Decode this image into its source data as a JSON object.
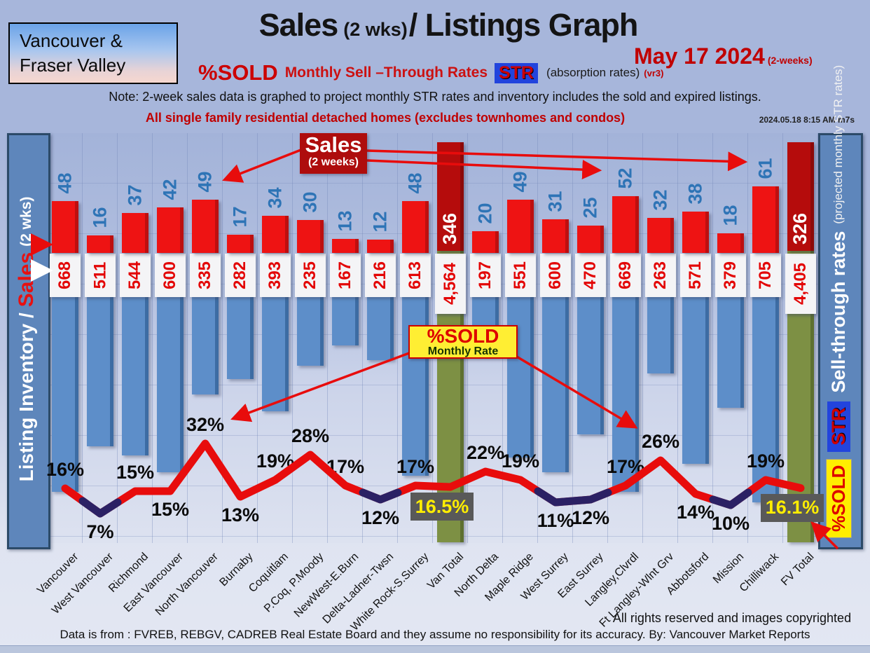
{
  "header": {
    "region_line1": "Vancouver &",
    "region_line2": "Fraser Valley",
    "title_main": "Sales",
    "title_small": "(2 wks)",
    "title_rest": "/ Listings Graph",
    "date": "May 17  2024",
    "date_suffix": "(2-weeks)",
    "pct_sold": "%SOLD",
    "monthly_rates": "Monthly Sell –Through Rates",
    "str_badge": "STR",
    "absorption": "(absorption rates)",
    "version": "(vr3)",
    "note": "Note: 2-week sales data is graphed to project monthly STR rates and inventory includes the sold and expired listings.",
    "subject": "All single family residential detached homes (excludes townhomes and condos)",
    "timestamp": "2024.05.18 8:15 AM m7s"
  },
  "left_axis": {
    "part1": "Listing Inventory /",
    "part2": "Sales",
    "part3": "(2  wks)"
  },
  "right_axis": {
    "pct_sold": "%SOLD",
    "str": "STR",
    "title": "Sell-through rates",
    "subtitle": "(projected monthly STR rates)"
  },
  "annotations": {
    "sales_line1": "Sales",
    "sales_line2": "(2 weeks)",
    "pctsold_line1": "%SOLD",
    "pctsold_line2": "Monthly Rate"
  },
  "footer": {
    "rights": "All rights reserved and  images copyrighted",
    "source": "Data is from : FVREB, REBGV, CADREB Real Estate Board and they assume no responsibility for its accuracy. By: Vancouver Market Reports"
  },
  "colors": {
    "sales_bar": "#ee1313",
    "sales_total_bar": "#b50c0c",
    "inventory_bar": "#5d8ec9",
    "total_inventory_bar": "#7d9044",
    "line_red": "#e80c0c",
    "line_navy": "#16246e",
    "pct_box_bg": "#595959",
    "pct_box_text": "#ffee00",
    "sales_value_text": "#2e74b6",
    "inventory_value_text": "#e30505"
  },
  "chart_data": {
    "type": "combo-bar-line",
    "title": "Sales (2 wks)/ Listings Graph",
    "date": "May 17 2024",
    "categories": [
      "Vancouver",
      "West Vancouver",
      "Richmond",
      "East Vancouver",
      "North Vancouver",
      "Burnaby",
      "Coquitlam",
      "P.Coq, P.Moody",
      "NewWest-E.Burn",
      "Delta-Ladner-Twsn",
      "White Rock-S.Surrey",
      "Van Total",
      "North Delta",
      "Maple Ridge",
      "West Surrey",
      "East Surrey",
      "Langley,Clvrdl",
      "Ft Langley-Wlnt Grv",
      "Abbotsford",
      "Mission",
      "Chilliwack",
      "FV Total"
    ],
    "series": [
      {
        "name": "Sales (2 weeks)",
        "type": "bar",
        "values": [
          48,
          16,
          37,
          42,
          49,
          17,
          34,
          30,
          13,
          12,
          48,
          346,
          20,
          49,
          31,
          25,
          52,
          32,
          38,
          18,
          61,
          326
        ]
      },
      {
        "name": "Listing Inventory (incl. sold and expired)",
        "type": "bar-down",
        "values": [
          668,
          511,
          544,
          600,
          335,
          282,
          393,
          235,
          167,
          216,
          613,
          4564,
          197,
          551,
          600,
          470,
          669,
          263,
          571,
          379,
          705,
          4405
        ]
      },
      {
        "name": "%SOLD Monthly Rate (STR)",
        "type": "line",
        "values": [
          16,
          7,
          15,
          15,
          32,
          13,
          19,
          28,
          17,
          12,
          17,
          16.5,
          22,
          19,
          11,
          12,
          17,
          26,
          14,
          10,
          19,
          16.1
        ]
      }
    ],
    "total_indices": [
      11,
      21
    ],
    "pct_label_position": [
      "above",
      "below",
      "above",
      "below",
      "above",
      "below",
      "above",
      "above",
      "above",
      "below",
      "above",
      "box",
      "above",
      "above",
      "below",
      "below",
      "above",
      "above",
      "below",
      "below",
      "above",
      "box"
    ],
    "navy_dip_groups": [
      [
        1
      ],
      [
        9
      ],
      [
        14,
        15
      ],
      [
        19
      ]
    ],
    "grid": true,
    "legend_position": "side-rails"
  }
}
